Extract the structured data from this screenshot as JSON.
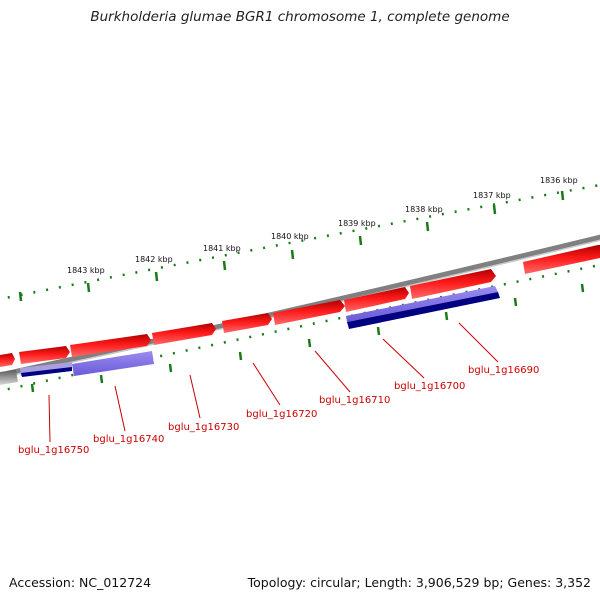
{
  "title": "Burkholderia glumae BGR1 chromosome 1, complete genome",
  "footer": {
    "accession": "Accession: NC_012724",
    "topology": "Topology: circular; Length: 3,906,529 bp; Genes: 3,352"
  },
  "colors": {
    "forward_gene": "#ff1a1a",
    "reverse_gene": "#8070e0",
    "reverse_gene_dark": "#000080",
    "backbone": "#7f7f7f",
    "ticks": "#1a7a1a",
    "label": "#cc0000"
  },
  "scale_labels": [
    "1836 kbp",
    "1837 kbp",
    "1838 kbp",
    "1839 kbp",
    "1840 kbp",
    "1841 kbp",
    "1842 kbp",
    "1843 kbp"
  ],
  "gene_labels": [
    "bglu_1g16690",
    "bglu_1g16700",
    "bglu_1g16710",
    "bglu_1g16720",
    "bglu_1g16730",
    "bglu_1g16740",
    "bglu_1g16750"
  ]
}
